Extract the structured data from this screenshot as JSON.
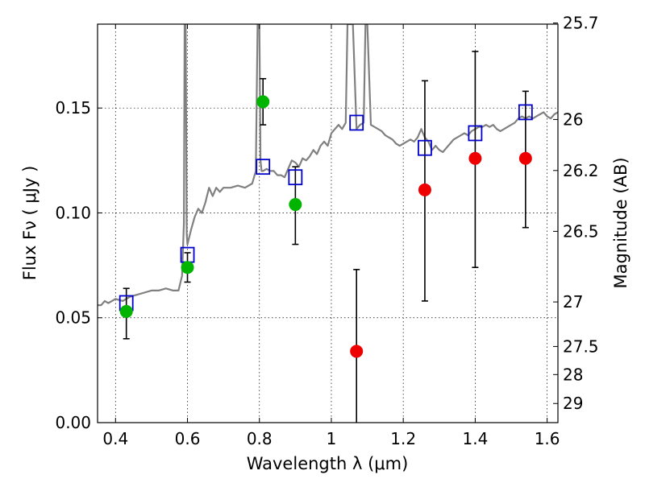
{
  "chart_data": {
    "type": "scatter",
    "xlabel": "Wavelength  λ (μm)",
    "ylabel": "Flux  Fν  ( μJy )",
    "ylabel2": "Magnitude (AB)",
    "xlim": [
      0.35,
      1.63
    ],
    "ylim": [
      0.0,
      0.19
    ],
    "grid": true,
    "xticks": [
      {
        "value": 0.4,
        "label": "0.4"
      },
      {
        "value": 0.6,
        "label": "0.6"
      },
      {
        "value": 0.8,
        "label": "0.8"
      },
      {
        "value": 1.0,
        "label": "1"
      },
      {
        "value": 1.2,
        "label": "1.2"
      },
      {
        "value": 1.4,
        "label": "1.4"
      },
      {
        "value": 1.6,
        "label": "1.6"
      }
    ],
    "yticks": [
      {
        "value": 0.0,
        "label": "0.00"
      },
      {
        "value": 0.05,
        "label": "0.05"
      },
      {
        "value": 0.1,
        "label": "0.10"
      },
      {
        "value": 0.15,
        "label": "0.15"
      }
    ],
    "mag_ticks": [
      {
        "mag": 25.7,
        "label": "25.7"
      },
      {
        "mag": 26.0,
        "label": "26"
      },
      {
        "mag": 26.2,
        "label": "26.2"
      },
      {
        "mag": 26.5,
        "label": "26.5"
      },
      {
        "mag": 27.0,
        "label": "27"
      },
      {
        "mag": 27.5,
        "label": "27.5"
      },
      {
        "mag": 28.0,
        "label": "28"
      },
      {
        "mag": 29.0,
        "label": "29"
      }
    ],
    "series": [
      {
        "kind": "model-spectrum",
        "color": "#808080",
        "x": [
          0.35,
          0.36,
          0.37,
          0.38,
          0.4,
          0.42,
          0.44,
          0.46,
          0.48,
          0.5,
          0.52,
          0.54,
          0.56,
          0.575,
          0.585,
          0.59,
          0.592,
          0.595,
          0.598,
          0.6,
          0.61,
          0.62,
          0.63,
          0.64,
          0.65,
          0.66,
          0.67,
          0.68,
          0.69,
          0.7,
          0.72,
          0.74,
          0.76,
          0.78,
          0.79,
          0.795,
          0.8,
          0.803,
          0.806,
          0.81,
          0.82,
          0.83,
          0.84,
          0.85,
          0.86,
          0.87,
          0.88,
          0.89,
          0.9,
          0.91,
          0.92,
          0.93,
          0.94,
          0.95,
          0.96,
          0.97,
          0.98,
          0.99,
          1.0,
          1.01,
          1.02,
          1.03,
          1.04,
          1.045,
          1.05,
          1.055,
          1.06,
          1.07,
          1.08,
          1.09,
          1.095,
          1.1,
          1.11,
          1.12,
          1.13,
          1.14,
          1.15,
          1.16,
          1.17,
          1.18,
          1.19,
          1.2,
          1.21,
          1.22,
          1.23,
          1.24,
          1.25,
          1.26,
          1.27,
          1.28,
          1.29,
          1.3,
          1.31,
          1.32,
          1.33,
          1.34,
          1.35,
          1.36,
          1.37,
          1.38,
          1.39,
          1.4,
          1.41,
          1.42,
          1.43,
          1.44,
          1.45,
          1.46,
          1.47,
          1.48,
          1.49,
          1.5,
          1.51,
          1.52,
          1.53,
          1.54,
          1.55,
          1.56,
          1.57,
          1.58,
          1.59,
          1.6,
          1.61,
          1.62,
          1.63
        ],
        "y": [
          0.056,
          0.056,
          0.058,
          0.057,
          0.059,
          0.058,
          0.06,
          0.061,
          0.062,
          0.063,
          0.063,
          0.064,
          0.063,
          0.063,
          0.07,
          0.095,
          0.19,
          0.19,
          0.09,
          0.085,
          0.092,
          0.098,
          0.102,
          0.1,
          0.105,
          0.112,
          0.108,
          0.112,
          0.11,
          0.112,
          0.112,
          0.113,
          0.112,
          0.114,
          0.12,
          0.19,
          0.19,
          0.125,
          0.12,
          0.12,
          0.121,
          0.12,
          0.12,
          0.118,
          0.118,
          0.117,
          0.121,
          0.125,
          0.124,
          0.122,
          0.126,
          0.125,
          0.127,
          0.13,
          0.128,
          0.132,
          0.134,
          0.132,
          0.138,
          0.14,
          0.142,
          0.14,
          0.143,
          0.19,
          0.19,
          0.19,
          0.19,
          0.14,
          0.142,
          0.143,
          0.19,
          0.19,
          0.142,
          0.141,
          0.14,
          0.139,
          0.137,
          0.136,
          0.135,
          0.133,
          0.132,
          0.133,
          0.134,
          0.135,
          0.134,
          0.136,
          0.14,
          0.136,
          0.134,
          0.13,
          0.132,
          0.13,
          0.129,
          0.131,
          0.133,
          0.135,
          0.136,
          0.137,
          0.138,
          0.137,
          0.139,
          0.14,
          0.141,
          0.141,
          0.142,
          0.141,
          0.142,
          0.14,
          0.139,
          0.14,
          0.141,
          0.142,
          0.143,
          0.145,
          0.146,
          0.145,
          0.146,
          0.145,
          0.146,
          0.147,
          0.148,
          0.146,
          0.145,
          0.147,
          0.148
        ]
      },
      {
        "kind": "model-points",
        "marker": "open-square",
        "color": "#0000cc",
        "points": [
          {
            "x": 0.43,
            "y": 0.057
          },
          {
            "x": 0.6,
            "y": 0.08
          },
          {
            "x": 0.81,
            "y": 0.122
          },
          {
            "x": 0.9,
            "y": 0.117
          },
          {
            "x": 1.07,
            "y": 0.143
          },
          {
            "x": 1.26,
            "y": 0.131
          },
          {
            "x": 1.4,
            "y": 0.138
          },
          {
            "x": 1.54,
            "y": 0.148
          }
        ]
      },
      {
        "kind": "detections",
        "marker": "filled-circle",
        "color": "#00b400",
        "points": [
          {
            "x": 0.43,
            "y": 0.053,
            "err": [
              0.04,
              0.064
            ]
          },
          {
            "x": 0.6,
            "y": 0.074,
            "err": [
              0.067,
              0.081
            ]
          },
          {
            "x": 0.81,
            "y": 0.153,
            "err": [
              0.142,
              0.164
            ]
          },
          {
            "x": 0.9,
            "y": 0.104,
            "err": [
              0.085,
              0.122
            ]
          }
        ]
      },
      {
        "kind": "upper-limits",
        "marker": "filled-circle",
        "color": "#ee0000",
        "points": [
          {
            "x": 1.07,
            "y": 0.034,
            "err": [
              0.0,
              0.073
            ]
          },
          {
            "x": 1.26,
            "y": 0.111,
            "err": [
              0.058,
              0.163
            ]
          },
          {
            "x": 1.4,
            "y": 0.126,
            "err": [
              0.074,
              0.177
            ]
          },
          {
            "x": 1.54,
            "y": 0.126,
            "err": [
              0.093,
              0.158
            ]
          }
        ]
      }
    ]
  }
}
